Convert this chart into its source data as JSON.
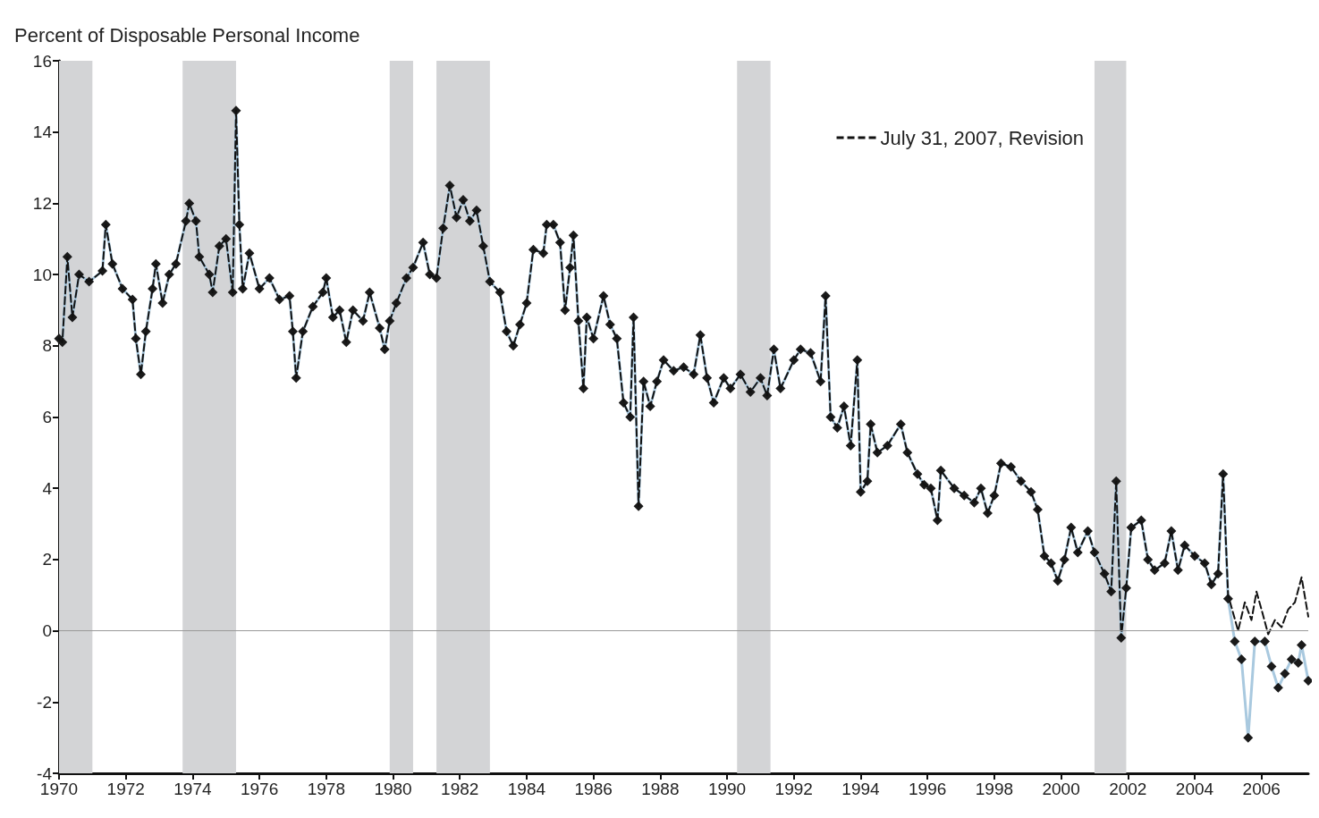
{
  "chart_data": {
    "type": "line",
    "ylabel": "Percent of Disposable Personal Income",
    "xlim": [
      1970,
      2007.4
    ],
    "xticks": [
      1970,
      1972,
      1974,
      1976,
      1978,
      1980,
      1982,
      1984,
      1986,
      1988,
      1990,
      1992,
      1994,
      1996,
      1998,
      2000,
      2002,
      2004,
      2006
    ],
    "ylim": [
      -4,
      16
    ],
    "yticks": [
      -4,
      -2,
      0,
      2,
      4,
      6,
      8,
      10,
      12,
      14,
      16
    ],
    "grid": false,
    "legend": "top right",
    "ref_lines": [
      {
        "axis": "y",
        "value": 0,
        "color": "#999999"
      }
    ],
    "bands": [
      {
        "axis": "x",
        "from": 1970,
        "to": 1971,
        "color": "#d3d4d6"
      },
      {
        "axis": "x",
        "from": 1973.7,
        "to": 1975.3,
        "color": "#d3d4d6"
      },
      {
        "axis": "x",
        "from": 1979.9,
        "to": 1980.6,
        "color": "#d3d4d6"
      },
      {
        "axis": "x",
        "from": 1981.3,
        "to": 1982.9,
        "color": "#d3d4d6"
      },
      {
        "axis": "x",
        "from": 1990.3,
        "to": 1991.3,
        "color": "#d3d4d6"
      },
      {
        "axis": "x",
        "from": 2001,
        "to": 2001.95,
        "color": "#d3d4d6"
      }
    ],
    "series": [
      {
        "color": "#a9c9df",
        "colors": [
          "#1a1a1a",
          "#1a1a1a",
          "#1a1a1a",
          "#1a1a1a",
          "#1a1a1a",
          "#1a1a1a",
          "#1a1a1a",
          "#1a1a1a",
          "#1a1a1a",
          "#1a1a1a",
          "#1a1a1a",
          "#1a1a1a",
          "#1a1a1a",
          "#1a1a1a",
          "#1a1a1a",
          "#1a1a1a",
          "#1a1a1a",
          "#1a1a1a",
          "#1a1a1a",
          "#1a1a1a",
          "#1a1a1a",
          "#1a1a1a",
          "#1a1a1a",
          "#1a1a1a",
          "#1a1a1a",
          "#1a1a1a",
          "#1a1a1a",
          "#1a1a1a",
          "#1a1a1a",
          "#1a1a1a",
          "#1a1a1a",
          "#1a1a1a",
          "#1a1a1a",
          "#1a1a1a",
          "#1a1a1a",
          "#1a1a1a",
          "#1a1a1a",
          "#1a1a1a",
          "#1a1a1a",
          "#1a1a1a",
          "#1a1a1a",
          "#1a1a1a",
          "#1a1a1a",
          "#1a1a1a",
          "#1a1a1a",
          "#1a1a1a",
          "#1a1a1a",
          "#1a1a1a",
          "#1a1a1a",
          "#1a1a1a",
          "#1a1a1a",
          "#1a1a1a",
          "#1a1a1a",
          "#1a1a1a",
          "#1a1a1a",
          "#1a1a1a",
          "#1a1a1a",
          "#1a1a1a",
          "#1a1a1a",
          "#1a1a1a",
          "#1a1a1a",
          "#1a1a1a",
          "#1a1a1a",
          "#1a1a1a",
          "#1a1a1a",
          "#1a1a1a",
          "#1a1a1a",
          "#1a1a1a",
          "#1a1a1a",
          "#1a1a1a",
          "#1a1a1a",
          "#1a1a1a",
          "#1a1a1a",
          "#1a1a1a",
          "#1a1a1a",
          "#1a1a1a",
          "#1a1a1a",
          "#1a1a1a",
          "#1a1a1a",
          "#1a1a1a",
          "#1a1a1a",
          "#1a1a1a",
          "#1a1a1a",
          "#1a1a1a",
          "#1a1a1a",
          "#1a1a1a",
          "#1a1a1a",
          "#1a1a1a",
          "#1a1a1a",
          "#1a1a1a",
          "#1a1a1a",
          "#1a1a1a",
          "#1a1a1a",
          "#1a1a1a",
          "#1a1a1a",
          "#1a1a1a",
          "#1a1a1a",
          "#1a1a1a",
          "#1a1a1a",
          "#1a1a1a",
          "#1a1a1a",
          "#1a1a1a",
          "#1a1a1a",
          "#1a1a1a",
          "#1a1a1a",
          "#1a1a1a",
          "#1a1a1a",
          "#1a1a1a",
          "#1a1a1a",
          "#1a1a1a",
          "#1a1a1a",
          "#1a1a1a",
          "#1a1a1a",
          "#1a1a1a",
          "#1a1a1a",
          "#1a1a1a",
          "#1a1a1a",
          "#1a1a1a",
          "#1a1a1a",
          "#1a1a1a",
          "#1a1a1a",
          "#1a1a1a",
          "#1a1a1a",
          "#1a1a1a",
          "#1a1a1a",
          "#1a1a1a",
          "#1a1a1a",
          "#1a1a1a",
          "#1a1a1a",
          "#1a1a1a",
          "#1a1a1a",
          "#1a1a1a",
          "#1a1a1a",
          "#1a1a1a",
          "#1a1a1a",
          "#1a1a1a",
          "#1a1a1a",
          "#1a1a1a",
          "#1a1a1a",
          "#1a1a1a",
          "#1a1a1a",
          "#1a1a1a",
          "#1a1a1a",
          "#1a1a1a",
          "#1a1a1a",
          "#1a1a1a",
          "#1a1a1a",
          "#1a1a1a",
          "#1a1a1a",
          "#1a1a1a",
          "#1a1a1a",
          "#1a1a1a",
          "#1a1a1a",
          "#1a1a1a",
          "#1a1a1a",
          "#1a1a1a",
          "#1a1a1a",
          "#1a1a1a",
          "#1a1a1a",
          "#1a1a1a",
          "#1a1a1a",
          "#1a1a1a",
          "#1a1a1a",
          "#1a1a1a",
          "#1a1a1a",
          "#1a1a1a",
          "#1a1a1a",
          "#1a1a1a",
          "#1a1a1a",
          "#1a1a1a",
          "#1a1a1a",
          "#1a1a1a",
          "#1a1a1a",
          "#1a1a1a",
          "#1a1a1a",
          "#1a1a1a",
          "#1a1a1a",
          "#1a1a1a",
          "#1a1a1a"
        ],
        "marker": "diamond",
        "line_style": "solid",
        "x": [
          1970,
          1970.1,
          1970.25,
          1970.4,
          1970.6,
          1970.9,
          1971.3,
          1971.4,
          1971.6,
          1971.9,
          1972.2,
          1972.3,
          1972.45,
          1972.6,
          1972.8,
          1972.9,
          1973.1,
          1973.3,
          1973.5,
          1973.8,
          1973.9,
          1974.1,
          1974.2,
          1974.5,
          1974.6,
          1974.8,
          1975,
          1975.2,
          1975.3,
          1975.4,
          1975.5,
          1975.7,
          1976,
          1976.3,
          1976.6,
          1976.9,
          1977,
          1977.1,
          1977.3,
          1977.6,
          1977.9,
          1978,
          1978.2,
          1978.4,
          1978.6,
          1978.8,
          1979.1,
          1979.3,
          1979.6,
          1979.75,
          1979.9,
          1980.1,
          1980.4,
          1980.6,
          1980.9,
          1981.1,
          1981.3,
          1981.5,
          1981.7,
          1981.9,
          1982.1,
          1982.3,
          1982.5,
          1982.7,
          1982.9,
          1983.2,
          1983.4,
          1983.6,
          1983.8,
          1984,
          1984.2,
          1984.5,
          1984.6,
          1984.8,
          1985,
          1985.15,
          1985.3,
          1985.4,
          1985.55,
          1985.7,
          1985.8,
          1986,
          1986.3,
          1986.5,
          1986.7,
          1986.9,
          1987.1,
          1987.2,
          1987.35,
          1987.5,
          1987.7,
          1987.9,
          1988.1,
          1988.4,
          1988.7,
          1989,
          1989.2,
          1989.4,
          1989.6,
          1989.9,
          1990.1,
          1990.4,
          1990.7,
          1991,
          1991.2,
          1991.4,
          1991.6,
          1992,
          1992.2,
          1992.5,
          1992.8,
          1992.95,
          1993.1,
          1993.3,
          1993.5,
          1993.7,
          1993.9,
          1994,
          1994.2,
          1994.3,
          1994.5,
          1994.8,
          1995.2,
          1995.4,
          1995.7,
          1995.9,
          1996.1,
          1996.3,
          1996.4,
          1996.8,
          1997.1,
          1997.4,
          1997.6,
          1997.8,
          1998,
          1998.2,
          1998.5,
          1998.8,
          1999.1,
          1999.3,
          1999.5,
          1999.7,
          1999.9,
          2000.1,
          2000.3,
          2000.5,
          2000.8,
          2001,
          2001.3,
          2001.5,
          2001.65,
          2001.8,
          2001.95,
          2002.1,
          2002.4,
          2002.6,
          2002.8,
          2003.1,
          2003.3,
          2003.5,
          2003.7,
          2004,
          2004.3,
          2004.5,
          2004.7,
          2004.85,
          2005,
          2005.2,
          2005.4,
          2005.6,
          2005.8,
          2006.1,
          2006.3,
          2006.5,
          2006.7,
          2006.9,
          2007.1,
          2007.2,
          2007.4
        ],
        "values": [
          8.2,
          8.1,
          10.5,
          8.8,
          10,
          9.8,
          10.1,
          11.4,
          10.3,
          9.6,
          9.3,
          8.2,
          7.2,
          8.4,
          9.6,
          10.3,
          9.2,
          10,
          10.3,
          11.5,
          12,
          11.5,
          10.5,
          10,
          9.5,
          10.8,
          11,
          9.5,
          14.6,
          11.4,
          9.6,
          10.6,
          9.6,
          9.9,
          9.3,
          9.4,
          8.4,
          7.1,
          8.4,
          9.1,
          9.5,
          9.9,
          8.8,
          9,
          8.1,
          9,
          8.7,
          9.5,
          8.5,
          7.9,
          8.7,
          9.2,
          9.9,
          10.2,
          10.9,
          10,
          9.9,
          11.3,
          12.5,
          11.6,
          12.1,
          11.5,
          11.8,
          10.8,
          9.8,
          9.5,
          8.4,
          8,
          8.6,
          9.2,
          10.7,
          10.6,
          11.4,
          11.4,
          10.9,
          9,
          10.2,
          11.1,
          8.7,
          6.8,
          8.8,
          8.2,
          9.4,
          8.6,
          8.2,
          6.4,
          6,
          8.8,
          3.5,
          7,
          6.3,
          7,
          7.6,
          7.3,
          7.4,
          7.2,
          8.3,
          7.1,
          6.4,
          7.1,
          6.8,
          7.2,
          6.7,
          7.1,
          6.6,
          7.9,
          6.8,
          7.6,
          7.9,
          7.8,
          7,
          9.4,
          6,
          5.7,
          6.3,
          5.2,
          7.6,
          3.9,
          4.2,
          5.8,
          5,
          5.2,
          5.8,
          5,
          4.4,
          4.1,
          4,
          3.1,
          4.5,
          4,
          3.8,
          3.6,
          4,
          3.3,
          3.8,
          4.7,
          4.6,
          4.2,
          3.9,
          3.4,
          2.1,
          1.9,
          1.4,
          2,
          2.9,
          2.2,
          2.8,
          2.2,
          1.6,
          1.1,
          4.2,
          -0.2,
          1.2,
          2.9,
          3.1,
          2,
          1.7,
          1.9,
          2.8,
          1.7,
          2.4,
          2.1,
          1.9,
          1.3,
          1.6,
          4.4,
          0.9,
          -0.3,
          -0.8,
          -3,
          -0.3,
          -0.3,
          -1,
          -1.6,
          -1.2,
          -0.8,
          -0.9,
          -0.4,
          -1.4
        ]
      },
      {
        "name": "July 31, 2007, Revision",
        "color": "#111111",
        "marker": "none",
        "line_style": "dashed",
        "x": [
          1970,
          1970.1,
          1970.25,
          1970.4,
          1970.6,
          1970.9,
          1971.3,
          1971.4,
          1971.6,
          1971.9,
          1972.2,
          1972.3,
          1972.45,
          1972.6,
          1972.8,
          1972.9,
          1973.1,
          1973.3,
          1973.5,
          1973.8,
          1973.9,
          1974.1,
          1974.2,
          1974.5,
          1974.6,
          1974.8,
          1975,
          1975.2,
          1975.3,
          1975.4,
          1975.5,
          1975.7,
          1976,
          1976.3,
          1976.6,
          1976.9,
          1977,
          1977.1,
          1977.3,
          1977.6,
          1977.9,
          1978,
          1978.2,
          1978.4,
          1978.6,
          1978.8,
          1979.1,
          1979.3,
          1979.6,
          1979.75,
          1979.9,
          1980.1,
          1980.4,
          1980.6,
          1980.9,
          1981.1,
          1981.3,
          1981.5,
          1981.7,
          1981.9,
          1982.1,
          1982.3,
          1982.5,
          1982.7,
          1982.9,
          1983.2,
          1983.4,
          1983.6,
          1983.8,
          1984,
          1984.2,
          1984.5,
          1984.6,
          1984.8,
          1985,
          1985.15,
          1985.3,
          1985.4,
          1985.55,
          1985.7,
          1985.8,
          1986,
          1986.3,
          1986.5,
          1986.7,
          1986.9,
          1987.1,
          1987.2,
          1987.35,
          1987.5,
          1987.7,
          1987.9,
          1988.1,
          1988.4,
          1988.7,
          1989,
          1989.2,
          1989.4,
          1989.6,
          1989.9,
          1990.1,
          1990.4,
          1990.7,
          1991,
          1991.2,
          1991.4,
          1991.6,
          1992,
          1992.2,
          1992.5,
          1992.8,
          1992.95,
          1993.1,
          1993.3,
          1993.5,
          1993.7,
          1993.9,
          1994,
          1994.2,
          1994.3,
          1994.5,
          1994.8,
          1995.2,
          1995.4,
          1995.7,
          1995.9,
          1996.1,
          1996.3,
          1996.4,
          1996.8,
          1997.1,
          1997.4,
          1997.6,
          1997.8,
          1998,
          1998.2,
          1998.5,
          1998.8,
          1999.1,
          1999.3,
          1999.5,
          1999.7,
          1999.9,
          2000.1,
          2000.3,
          2000.5,
          2000.8,
          2001,
          2001.3,
          2001.5,
          2001.65,
          2001.8,
          2001.95,
          2002.1,
          2002.4,
          2002.6,
          2002.8,
          2003.1,
          2003.3,
          2003.5,
          2003.7,
          2004,
          2004.3,
          2004.5,
          2004.7,
          2004.85,
          2005,
          2005.15,
          2005.3,
          2005.5,
          2005.7,
          2005.85,
          2006,
          2006.2,
          2006.4,
          2006.6,
          2006.8,
          2007,
          2007.2,
          2007.4
        ],
        "values": [
          8.2,
          8.1,
          10.5,
          8.8,
          10,
          9.8,
          10.1,
          11.4,
          10.3,
          9.6,
          9.3,
          8.2,
          7.2,
          8.4,
          9.6,
          10.3,
          9.2,
          10,
          10.3,
          11.5,
          12,
          11.5,
          10.5,
          10,
          9.5,
          10.8,
          11,
          9.5,
          14.6,
          11.4,
          9.6,
          10.6,
          9.6,
          9.9,
          9.3,
          9.4,
          8.4,
          7.1,
          8.4,
          9.1,
          9.5,
          9.9,
          8.8,
          9,
          8.1,
          9,
          8.7,
          9.5,
          8.5,
          7.9,
          8.7,
          9.2,
          9.9,
          10.2,
          10.9,
          10,
          9.9,
          11.3,
          12.5,
          11.6,
          12.1,
          11.5,
          11.8,
          10.8,
          9.8,
          9.5,
          8.4,
          8,
          8.6,
          9.2,
          10.7,
          10.6,
          11.4,
          11.4,
          10.9,
          9,
          10.2,
          11.1,
          8.7,
          6.8,
          8.8,
          8.2,
          9.4,
          8.6,
          8.2,
          6.4,
          6,
          8.8,
          3.5,
          7,
          6.3,
          7,
          7.6,
          7.3,
          7.4,
          7.2,
          8.3,
          7.1,
          6.4,
          7.1,
          6.8,
          7.2,
          6.7,
          7.1,
          6.6,
          7.9,
          6.8,
          7.6,
          7.9,
          7.8,
          7,
          9.4,
          6,
          5.7,
          6.3,
          5.2,
          7.6,
          3.9,
          4.2,
          5.8,
          5,
          5.2,
          5.8,
          5,
          4.4,
          4.1,
          4,
          3.1,
          4.5,
          4,
          3.8,
          3.6,
          4,
          3.3,
          3.8,
          4.7,
          4.6,
          4.2,
          3.9,
          3.4,
          2.1,
          1.9,
          1.4,
          2,
          2.9,
          2.2,
          2.8,
          2.2,
          1.6,
          1.1,
          4.2,
          -0.2,
          1.2,
          2.9,
          3.1,
          2,
          1.7,
          1.9,
          2.8,
          1.7,
          2.4,
          2.1,
          1.9,
          1.3,
          1.6,
          4.4,
          1,
          0.5,
          0,
          0.8,
          0.3,
          1.1,
          0.6,
          -0.1,
          0.3,
          0.1,
          0.6,
          0.8,
          1.5,
          0.4
        ]
      }
    ]
  }
}
